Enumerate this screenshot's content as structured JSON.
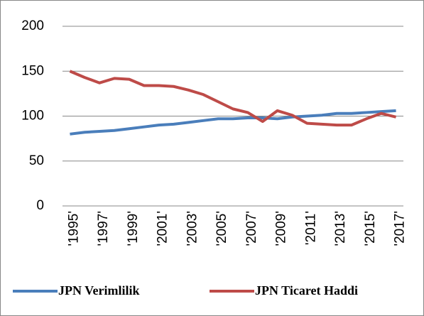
{
  "chart_data": {
    "type": "line",
    "categories": [
      "'1995'",
      null,
      "'1997'",
      null,
      "'1999'",
      null,
      "'2001'",
      null,
      "'2003'",
      null,
      "'2005'",
      null,
      "'2007'",
      null,
      "'2009'",
      null,
      "'2011'",
      null,
      "'2013'",
      null,
      "'2015'",
      null,
      "'2017'"
    ],
    "series": [
      {
        "name": "JPN Verimlilik",
        "color": "#4a7ebb",
        "values": [
          80,
          82,
          83,
          84,
          86,
          88,
          90,
          91,
          93,
          95,
          97,
          97,
          98,
          98,
          97,
          99,
          100,
          101,
          103,
          103,
          104,
          105,
          106
        ]
      },
      {
        "name": "JPN Ticaret Haddi",
        "color": "#be4b48",
        "values": [
          150,
          143,
          137,
          142,
          141,
          134,
          134,
          133,
          129,
          124,
          116,
          108,
          104,
          94,
          106,
          101,
          92,
          91,
          90,
          90,
          97,
          103,
          99
        ]
      }
    ],
    "ylim": [
      0,
      200
    ],
    "yticks": [
      0,
      50,
      100,
      150,
      200
    ],
    "grid": true,
    "legend": "bottom"
  }
}
